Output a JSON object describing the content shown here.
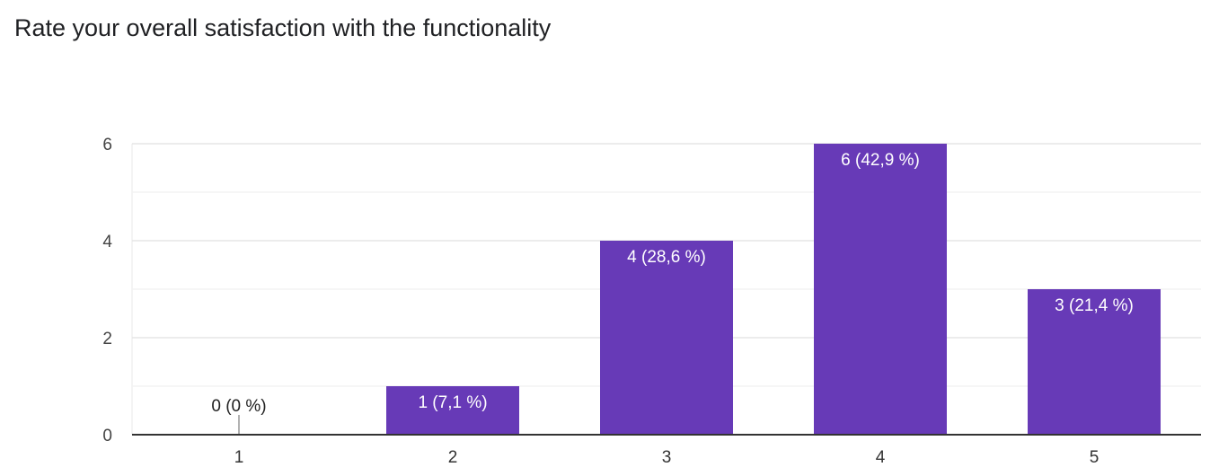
{
  "chart_data": {
    "type": "bar",
    "title": "Rate your overall satisfaction with the functionality",
    "categories": [
      "1",
      "2",
      "3",
      "4",
      "5"
    ],
    "values": [
      0,
      1,
      4,
      6,
      3
    ],
    "data_labels": [
      "0 (0 %)",
      "1 (7,1 %)",
      "4 (28,6 %)",
      "6 (42,9 %)",
      "3 (21,4 %)"
    ],
    "ylim": [
      0,
      6
    ],
    "yticks": [
      0,
      2,
      4,
      6
    ],
    "grid": true,
    "bar_color": "#673ab7",
    "xlabel": "",
    "ylabel": ""
  }
}
